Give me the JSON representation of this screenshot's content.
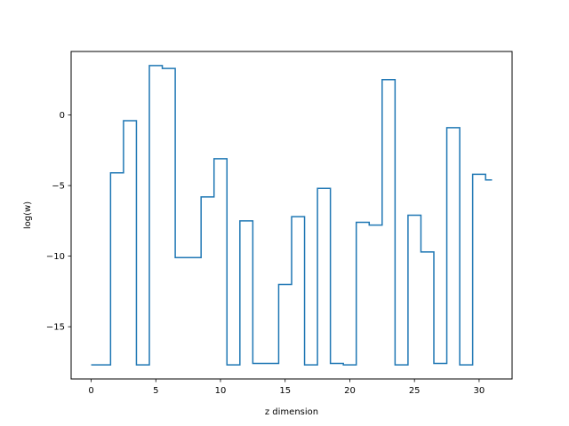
{
  "chart_data": {
    "type": "line",
    "drawstyle": "steps-mid",
    "title": "",
    "xlabel": "z dimension",
    "ylabel": "log(w)",
    "xlim": [
      -1.55,
      32.55
    ],
    "ylim": [
      -18.7,
      4.5
    ],
    "xticks": [
      0,
      5,
      10,
      15,
      20,
      25,
      30
    ],
    "yticks": [
      -15,
      -10,
      -5,
      0
    ],
    "ytick_labels": [
      "−15",
      "−10",
      "−5",
      "0"
    ],
    "grid": false,
    "legend": "none",
    "series": [
      {
        "color": "#1f77b4",
        "x": [
          0,
          1,
          2,
          3,
          4,
          5,
          6,
          7,
          8,
          9,
          10,
          11,
          12,
          13,
          14,
          15,
          16,
          17,
          18,
          19,
          20,
          21,
          22,
          23,
          24,
          25,
          26,
          27,
          28,
          29,
          30,
          31
        ],
        "y": [
          -17.7,
          -17.7,
          -4.1,
          -0.4,
          -17.7,
          3.5,
          3.3,
          -10.1,
          -10.1,
          -5.8,
          -3.1,
          -17.7,
          -7.5,
          -17.6,
          -17.6,
          -12.0,
          -7.2,
          -17.7,
          -5.2,
          -17.6,
          -17.7,
          -7.6,
          -7.8,
          2.5,
          -17.7,
          -7.1,
          -9.7,
          -17.6,
          -0.9,
          -17.7,
          -4.2,
          -4.6
        ]
      }
    ]
  }
}
